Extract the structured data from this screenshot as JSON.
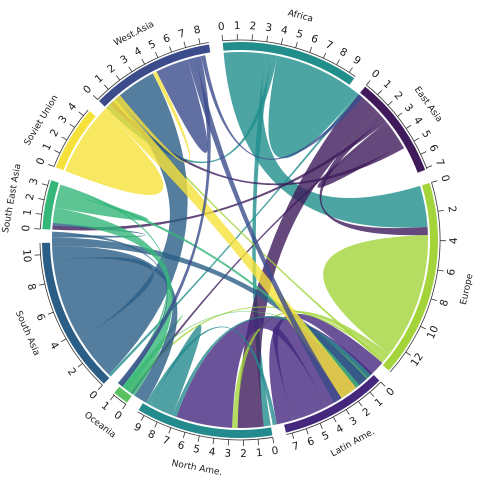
{
  "chart_data": {
    "type": "chord",
    "title": "",
    "gap_degrees": 4,
    "regions": [
      {
        "name": "Africa",
        "total": 9.5,
        "ticks": [
          0,
          1,
          2,
          3,
          4,
          5,
          6,
          7,
          8,
          9
        ],
        "color": "#218e8c"
      },
      {
        "name": "East Asia",
        "total": 7.1,
        "ticks": [
          0,
          1,
          2,
          3,
          4,
          5,
          6,
          7
        ],
        "color": "#3f1b5b"
      },
      {
        "name": "Europe",
        "total": 13.7,
        "ticks": [
          0,
          2,
          4,
          6,
          8,
          10,
          12
        ],
        "color": "#a3d43a"
      },
      {
        "name": "Latin Ame.",
        "total": 7.4,
        "ticks": [
          0,
          1,
          2,
          3,
          4,
          5,
          6,
          7
        ],
        "color": "#45287e"
      },
      {
        "name": "North Ame.",
        "total": 9.5,
        "ticks": [
          0,
          1,
          2,
          3,
          4,
          5,
          6,
          7,
          8,
          9
        ],
        "color": "#238a8d"
      },
      {
        "name": "Oceania",
        "total": 1.1,
        "ticks": [
          0,
          1
        ],
        "color": "#59c160"
      },
      {
        "name": "South Asia",
        "total": 10.8,
        "ticks": [
          0,
          2,
          4,
          6,
          8,
          10
        ],
        "color": "#2b5e86"
      },
      {
        "name": "South East Asia",
        "total": 3.4,
        "ticks": [
          0,
          1,
          2,
          3
        ],
        "color": "#35b779"
      },
      {
        "name": "Soviet Union",
        "total": 4.5,
        "ticks": [
          0,
          1,
          2,
          3,
          4
        ],
        "color": "#f6e13a"
      },
      {
        "name": "West.Asia",
        "total": 8.6,
        "ticks": [
          0,
          1,
          2,
          3,
          4,
          5,
          6,
          7,
          8
        ],
        "color": "#3b4b8c"
      }
    ],
    "flows": [
      {
        "from": "Africa",
        "to": "Europe",
        "value": 3.0
      },
      {
        "from": "Africa",
        "to": "North Ame.",
        "value": 0.5
      },
      {
        "from": "Africa",
        "to": "West.Asia",
        "value": 0.4
      },
      {
        "from": "Africa",
        "to": "Africa",
        "value": 3.2
      },
      {
        "from": "Africa",
        "to": "South Asia",
        "value": 0.2
      },
      {
        "from": "East Asia",
        "to": "North Ame.",
        "value": 1.9
      },
      {
        "from": "East Asia",
        "to": "Europe",
        "value": 0.6
      },
      {
        "from": "East Asia",
        "to": "South East Asia",
        "value": 0.3
      },
      {
        "from": "East Asia",
        "to": "Oceania",
        "value": 0.2
      },
      {
        "from": "East Asia",
        "to": "East Asia",
        "value": 0.9
      },
      {
        "from": "East Asia",
        "to": "West.Asia",
        "value": 0.3
      },
      {
        "from": "Europe",
        "to": "Europe",
        "value": 4.6
      },
      {
        "from": "Europe",
        "to": "North Ame.",
        "value": 0.4
      },
      {
        "from": "Europe",
        "to": "Oceania",
        "value": 0.2
      },
      {
        "from": "Europe",
        "to": "West.Asia",
        "value": 0.2
      },
      {
        "from": "Latin Ame.",
        "to": "North Ame.",
        "value": 4.1
      },
      {
        "from": "Latin Ame.",
        "to": "Latin Ame.",
        "value": 1.3
      },
      {
        "from": "Latin Ame.",
        "to": "Europe",
        "value": 1.2
      },
      {
        "from": "North Ame.",
        "to": "Europe",
        "value": 0.3
      },
      {
        "from": "North Ame.",
        "to": "North Ame.",
        "value": 0.9
      },
      {
        "from": "North Ame.",
        "to": "Latin Ame.",
        "value": 0.3
      },
      {
        "from": "Oceania",
        "to": "Oceania",
        "value": 0.2
      },
      {
        "from": "Oceania",
        "to": "Europe",
        "value": 0.1
      },
      {
        "from": "South Asia",
        "to": "West.Asia",
        "value": 3.3
      },
      {
        "from": "South Asia",
        "to": "South Asia",
        "value": 3.0
      },
      {
        "from": "South Asia",
        "to": "North Ame.",
        "value": 1.0
      },
      {
        "from": "South Asia",
        "to": "Europe",
        "value": 0.7
      },
      {
        "from": "South Asia",
        "to": "South East Asia",
        "value": 0.2
      },
      {
        "from": "South Asia",
        "to": "Oceania",
        "value": 0.2
      },
      {
        "from": "South East Asia",
        "to": "North Ame.",
        "value": 1.1
      },
      {
        "from": "South East Asia",
        "to": "South East Asia",
        "value": 0.6
      },
      {
        "from": "South East Asia",
        "to": "Europe",
        "value": 0.3
      },
      {
        "from": "South East Asia",
        "to": "Oceania",
        "value": 0.2
      },
      {
        "from": "Soviet Union",
        "to": "Soviet Union",
        "value": 2.6
      },
      {
        "from": "Soviet Union",
        "to": "Europe",
        "value": 1.3
      },
      {
        "from": "Soviet Union",
        "to": "West.Asia",
        "value": 0.3
      },
      {
        "from": "West.Asia",
        "to": "West.Asia",
        "value": 1.2
      },
      {
        "from": "West.Asia",
        "to": "Europe",
        "value": 0.6
      },
      {
        "from": "West.Asia",
        "to": "North Ame.",
        "value": 0.4
      },
      {
        "from": "West.Asia",
        "to": "Africa",
        "value": 0.3
      }
    ]
  }
}
